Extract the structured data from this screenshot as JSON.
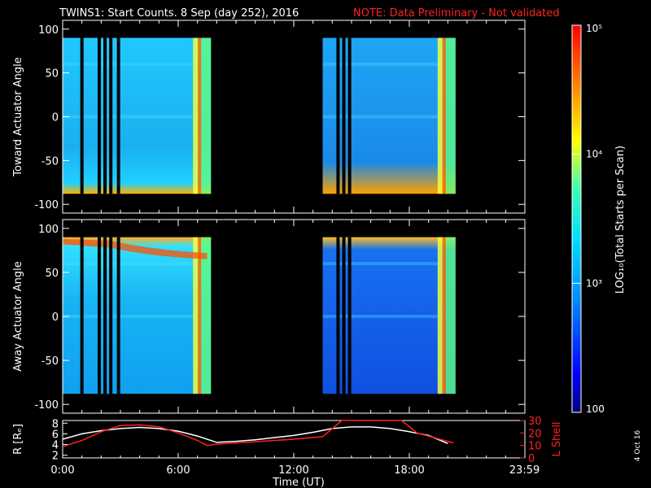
{
  "title": {
    "main": "TWINS1: Start Counts.  8 Sep (day 252), 2016",
    "note": "NOTE: Data Preliminary - Not validated"
  },
  "footer": {
    "date_stamp": "4 Oct 16"
  },
  "colorbar": {
    "label": "LOG₁₀(Total Starts per Scan)",
    "ticks": [
      "100",
      "10³",
      "10⁴",
      "10⁵"
    ],
    "range": [
      100,
      100000
    ],
    "scale": "log"
  },
  "xaxis": {
    "label": "Time (UT)",
    "ticks": [
      "0:00",
      "6:00",
      "12:00",
      "18:00",
      "23:59"
    ],
    "range_hours": [
      0,
      24
    ]
  },
  "chart_data": [
    {
      "type": "heatmap",
      "ylabel": "Toward Actuator Angle",
      "ylim": [
        -110,
        110
      ],
      "yticks": [
        "100",
        "50",
        "0",
        "-50",
        "-100"
      ],
      "data_extent_y": [
        -88,
        90
      ],
      "coverage_hours": [
        [
          0.0,
          7.7
        ],
        [
          13.5,
          20.4
        ]
      ],
      "gap_hours": [
        1.0,
        1.9,
        2.2,
        2.5,
        2.9,
        14.3,
        14.6,
        14.9
      ]
    },
    {
      "type": "heatmap",
      "ylabel": "Away Actuator Angle",
      "ylim": [
        -110,
        110
      ],
      "yticks": [
        "100",
        "50",
        "0",
        "-50",
        "-100"
      ],
      "data_extent_y": [
        -88,
        90
      ],
      "coverage_hours": [
        [
          0.0,
          7.7
        ],
        [
          13.5,
          20.4
        ]
      ],
      "gap_hours": [
        1.0,
        1.9,
        2.2,
        2.5,
        2.9,
        14.3,
        14.6,
        14.9
      ]
    },
    {
      "type": "line",
      "ylabel_left": "R [Rₑ]",
      "ylabel_right": "L Shell",
      "ylim_left": [
        1.5,
        8.5
      ],
      "ylim_right": [
        0,
        30
      ],
      "yticks_left": [
        "8",
        "6",
        "4",
        "2"
      ],
      "yticks_right": [
        "30",
        "20",
        "10",
        "0"
      ],
      "series": [
        {
          "axis": "left",
          "color": "#ffffff",
          "x": [
            0,
            1,
            2,
            3,
            4,
            5,
            6,
            7,
            8,
            9,
            10,
            11,
            12,
            13,
            14,
            15,
            16,
            17,
            18,
            19,
            20
          ],
          "y": [
            5.0,
            6.0,
            6.6,
            7.0,
            7.2,
            7.0,
            6.5,
            5.6,
            4.4,
            4.6,
            4.9,
            5.3,
            5.7,
            6.3,
            7.0,
            7.3,
            7.3,
            7.0,
            6.4,
            5.7,
            4.2
          ]
        },
        {
          "axis": "right",
          "color": "#ff2020",
          "x": [
            0,
            1,
            2,
            3,
            4,
            5,
            6,
            7,
            7.5,
            8,
            10,
            12,
            13.5,
            14.5,
            17.6,
            18.4,
            20.3
          ],
          "y": [
            9,
            14,
            21,
            26,
            26.5,
            25,
            20,
            14,
            10,
            11,
            13,
            15,
            17,
            30,
            30,
            20,
            12
          ]
        }
      ]
    }
  ]
}
